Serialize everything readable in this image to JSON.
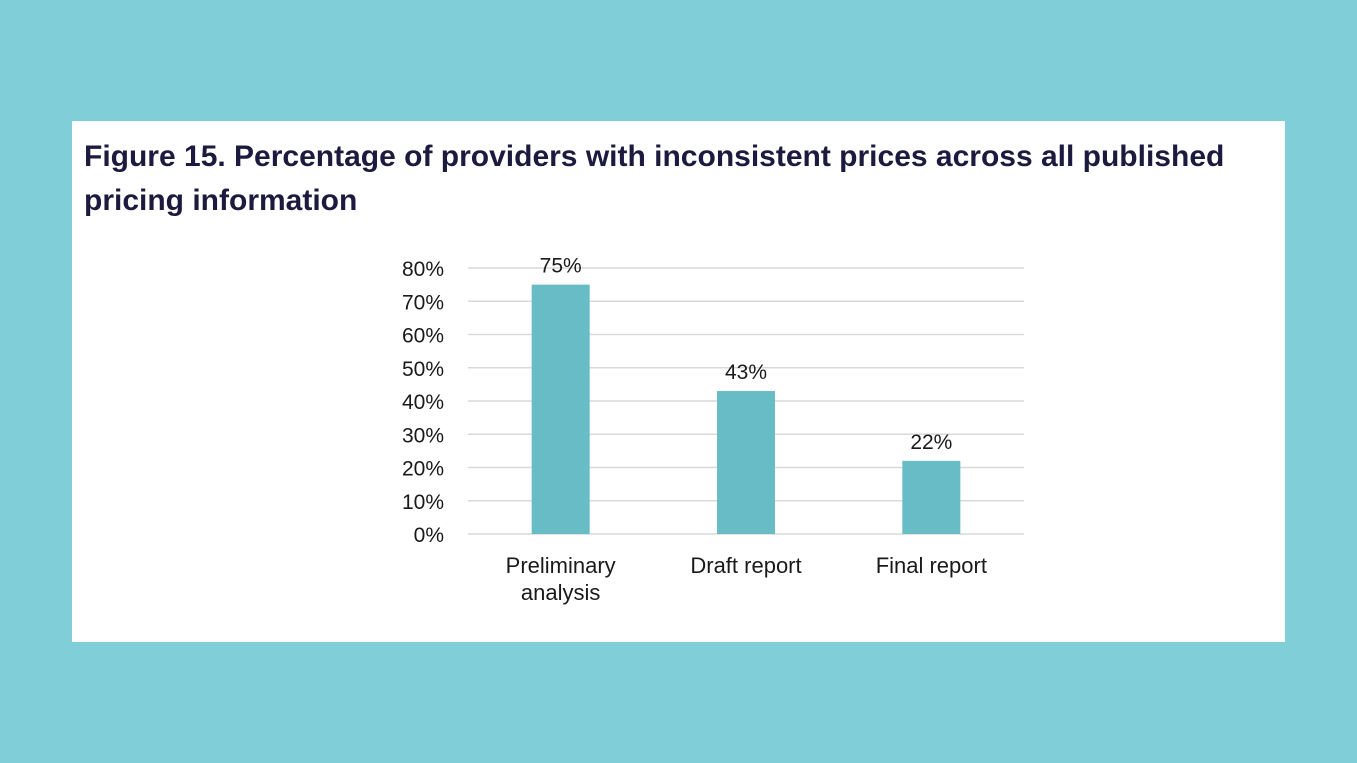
{
  "figure": {
    "title": "Figure 15. Percentage of providers with inconsistent prices across all published pricing information"
  },
  "colors": {
    "background": "#80ced8",
    "card": "#ffffff",
    "bar": "#67bcc6",
    "gridline": "#d9d9d9",
    "title_text": "#1c1a3e"
  },
  "chart_data": {
    "type": "bar",
    "title": "Figure 15. Percentage of providers with inconsistent prices across all published pricing information",
    "categories": [
      [
        "Preliminary",
        "analysis"
      ],
      [
        "Draft report"
      ],
      [
        "Final report"
      ]
    ],
    "values": [
      75,
      43,
      22
    ],
    "data_labels": [
      "75%",
      "43%",
      "22%"
    ],
    "yticks": [
      0,
      10,
      20,
      30,
      40,
      50,
      60,
      70,
      80
    ],
    "ytick_labels": [
      "0%",
      "10%",
      "20%",
      "30%",
      "40%",
      "50%",
      "60%",
      "70%",
      "80%"
    ],
    "ylim": [
      0,
      80
    ],
    "xlabel": "",
    "ylabel": "",
    "grid": true,
    "legend": "none"
  }
}
